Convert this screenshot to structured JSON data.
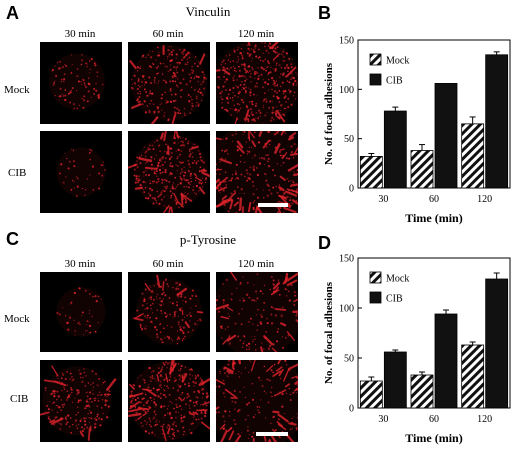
{
  "panels": {
    "A": {
      "letter": "A",
      "title": "Vinculin",
      "times": [
        "30 min",
        "60 min",
        "120 min"
      ],
      "rows": [
        "Mock",
        "CIB"
      ]
    },
    "B": {
      "letter": "B"
    },
    "C": {
      "letter": "C",
      "title": "p-Tyrosine",
      "times": [
        "30 min",
        "60 min",
        "120 min"
      ],
      "rows": [
        "Mock",
        "CIB"
      ]
    },
    "D": {
      "letter": "D"
    }
  },
  "colors": {
    "stain": "#e0232c",
    "bar_cib": "#111111",
    "hatch": "#111111"
  },
  "chart_data": [
    {
      "type": "bar",
      "categories": [
        "30",
        "60",
        "120"
      ],
      "series": [
        {
          "name": "Mock",
          "pattern": "hatched",
          "values": [
            32,
            38,
            65
          ],
          "errors": [
            3,
            6,
            7
          ]
        },
        {
          "name": "CIB",
          "pattern": "solid",
          "values": [
            78,
            106,
            135
          ],
          "errors": [
            4,
            0,
            3
          ]
        }
      ],
      "xlabel": "Time (min)",
      "ylabel": "No. of focal adhesions",
      "ylim": [
        0,
        150
      ],
      "yticks": [
        0,
        50,
        100,
        150
      ],
      "legend": "top-left",
      "grid": false
    },
    {
      "type": "bar",
      "categories": [
        "30",
        "60",
        "120"
      ],
      "series": [
        {
          "name": "Mock",
          "pattern": "hatched",
          "values": [
            27,
            33,
            63
          ],
          "errors": [
            4,
            3,
            3
          ]
        },
        {
          "name": "CIB",
          "pattern": "solid",
          "values": [
            56,
            94,
            129
          ],
          "errors": [
            2,
            4,
            6
          ]
        }
      ],
      "xlabel": "Time (min)",
      "ylabel": "No. of focal adhesions",
      "ylim": [
        0,
        150
      ],
      "yticks": [
        0,
        50,
        100,
        150
      ],
      "legend": "top-left",
      "grid": false
    }
  ]
}
